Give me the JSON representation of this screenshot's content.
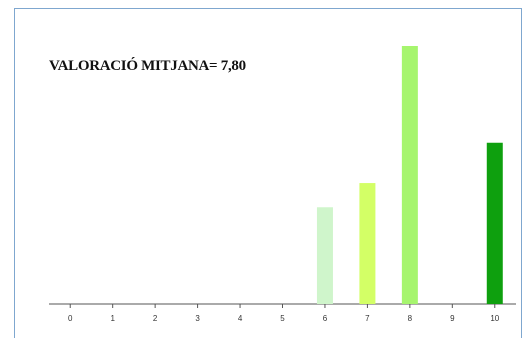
{
  "chart_data": {
    "type": "bar",
    "title": "VALORACIÓ MITJANA= 7,80",
    "xlabel": "",
    "ylabel": "",
    "categories": [
      "0",
      "1",
      "2",
      "3",
      "4",
      "5",
      "6",
      "7",
      "8",
      "9",
      "10"
    ],
    "values": [
      0,
      0,
      0,
      0,
      0,
      0,
      6,
      7.5,
      16,
      0,
      10
    ],
    "colors": [
      "#cfeecd",
      "#cfeecd",
      "#cfeecd",
      "#cfeecd",
      "#cfeecd",
      "#cfeecd",
      "#cff5cb",
      "#d3ff66",
      "#a6f56e",
      "#2fa32f",
      "#0ea00e"
    ],
    "ylim": [
      0,
      16
    ],
    "grid": false,
    "legend": "none"
  }
}
